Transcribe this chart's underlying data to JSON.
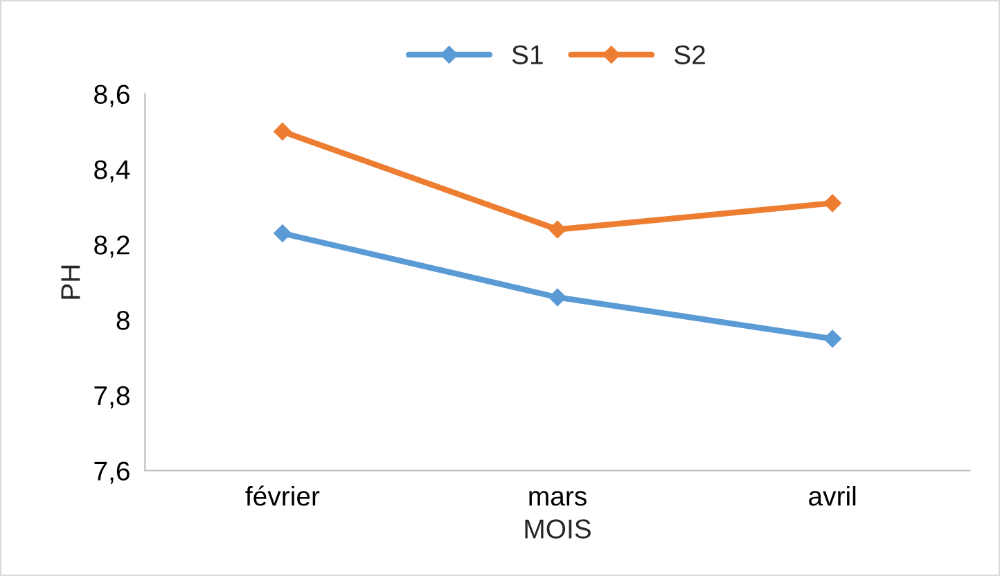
{
  "chart_data": {
    "type": "line",
    "xlabel": "MOIS",
    "ylabel": "PH",
    "categories": [
      "février",
      "mars",
      "avril"
    ],
    "series": [
      {
        "name": "S1",
        "color": "#5b9bd5",
        "values": [
          8.23,
          8.06,
          7.95
        ]
      },
      {
        "name": "S2",
        "color": "#ed7d31",
        "values": [
          8.5,
          8.24,
          8.31
        ]
      }
    ],
    "ylim": [
      7.6,
      8.6
    ],
    "yticks": [
      {
        "value": 7.6,
        "label": "7,6"
      },
      {
        "value": 7.8,
        "label": "7,8"
      },
      8,
      {
        "value": 8.2,
        "label": "8,2"
      },
      {
        "value": 8.4,
        "label": "8,4"
      },
      {
        "value": 8.6,
        "label": "8,6"
      }
    ],
    "grid": false,
    "legend": "top",
    "marker": "diamond",
    "line_style": "solid"
  }
}
